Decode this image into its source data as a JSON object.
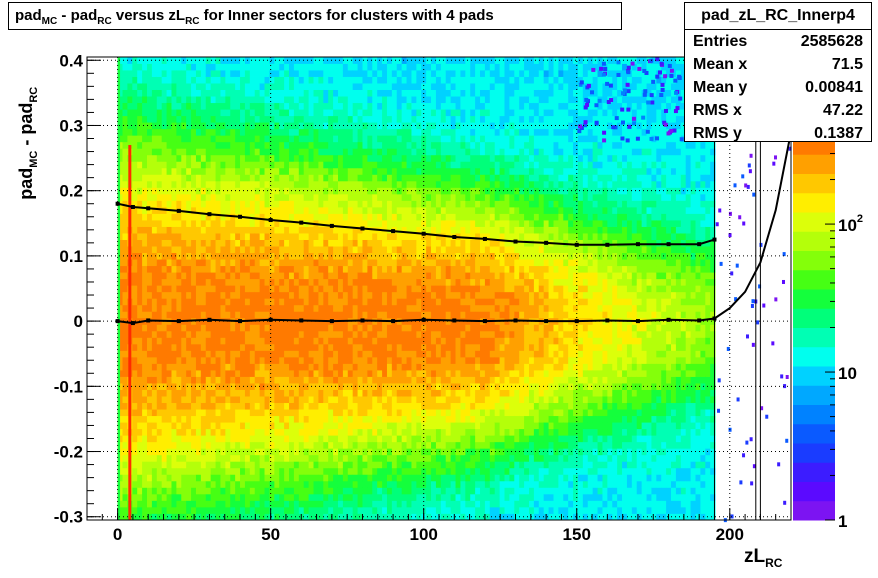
{
  "title": {
    "parts": [
      {
        "t": "pad"
      },
      {
        "s": "MC"
      },
      {
        "t": " - pad"
      },
      {
        "s": "RC"
      },
      {
        "t": " versus zL"
      },
      {
        "s": "RC"
      },
      {
        "t": " for Inner sectors for clusters with 4 pads"
      }
    ]
  },
  "stats": {
    "name": "pad_zL_RC_Innerp4",
    "rows": [
      {
        "label": "Entries",
        "value": "2585628"
      },
      {
        "label": "Mean x",
        "value": "71.5"
      },
      {
        "label": "Mean y",
        "value": "0.00841"
      },
      {
        "label": "RMS x",
        "value": "47.22"
      },
      {
        "label": "RMS y",
        "value": "0.1387"
      }
    ]
  },
  "axes": {
    "xtitle_main": "zL",
    "xtitle_sub": "RC",
    "ytitle_parts": [
      {
        "t": "pad"
      },
      {
        "s": "MC"
      },
      {
        "t": " - pad"
      },
      {
        "s": "RC"
      }
    ]
  },
  "chart_data": {
    "type": "heatmap",
    "xlim": [
      -10,
      220
    ],
    "ylim": [
      -0.305,
      0.405
    ],
    "x_ticks": [
      0,
      50,
      100,
      150,
      200
    ],
    "x_tick_labels": [
      "0",
      "50",
      "100",
      "150",
      "200"
    ],
    "y_ticks": [
      -0.3,
      -0.2,
      -0.1,
      0,
      0.1,
      0.2,
      0.3,
      0.4
    ],
    "y_tick_labels": [
      "-0.3",
      "-0.2",
      "-0.1",
      "0",
      "0.1",
      "0.2",
      "0.3",
      "0.4"
    ],
    "grid": true,
    "z_scale": "log",
    "z_range": [
      1,
      400
    ],
    "z_tick_labels": [
      {
        "value": 1,
        "label": "1"
      },
      {
        "value": 10,
        "label": "10"
      },
      {
        "value": 100,
        "label": "10",
        "sup": "2"
      }
    ],
    "palette": [
      "#7c14f2",
      "#5b0aff",
      "#3c1cff",
      "#1a3cff",
      "#0a5aff",
      "#0082ff",
      "#00a8ff",
      "#00d2ff",
      "#00ffee",
      "#00ffb4",
      "#00ff7a",
      "#14ff3c",
      "#46ff14",
      "#84ff0a",
      "#b4ff0a",
      "#dcff0a",
      "#ffee00",
      "#ffc800",
      "#ffa000",
      "#ff7a00"
    ],
    "density_model": {
      "x_range": [
        0,
        195
      ],
      "bin_width_x": 1.6,
      "bin_width_y": 0.01,
      "peak_counts": 320,
      "sigma_y_at_x0": 0.135,
      "sigma_y_at_x195": 0.065,
      "falloff_start_x": 120,
      "edge_bins": [
        {
          "x": 0,
          "note": "green edge column"
        },
        {
          "x": 3.5,
          "note": "red spike column"
        }
      ],
      "sparse_x_range": [
        195,
        220
      ]
    },
    "series": [
      {
        "name": "mean",
        "x": [
          0,
          5,
          10,
          20,
          30,
          40,
          50,
          60,
          70,
          80,
          90,
          100,
          110,
          120,
          130,
          140,
          150,
          160,
          170,
          180,
          190,
          195,
          200,
          205,
          210,
          215,
          220
        ],
        "y": [
          0.0,
          -0.003,
          0.001,
          0.0,
          0.002,
          0.0,
          0.002,
          0.001,
          0.0,
          0.001,
          0.0,
          0.002,
          0.001,
          0.0,
          0.001,
          0.0,
          0.0,
          0.001,
          0.0,
          0.002,
          0.001,
          0.004,
          0.02,
          0.045,
          0.09,
          0.17,
          0.29
        ]
      },
      {
        "name": "rms",
        "x": [
          0,
          5,
          10,
          20,
          30,
          40,
          50,
          60,
          70,
          80,
          90,
          100,
          110,
          120,
          130,
          140,
          150,
          160,
          170,
          180,
          190,
          195
        ],
        "y": [
          0.18,
          0.175,
          0.173,
          0.169,
          0.164,
          0.16,
          0.155,
          0.151,
          0.146,
          0.142,
          0.138,
          0.134,
          0.129,
          0.126,
          0.122,
          0.12,
          0.117,
          0.117,
          0.118,
          0.118,
          0.118,
          0.125
        ]
      }
    ],
    "vertical_markers": [
      {
        "x": 195,
        "color": "#000000"
      },
      {
        "x": 208.5,
        "color": "#000000"
      },
      {
        "x": 210,
        "color": "#000000"
      }
    ]
  }
}
